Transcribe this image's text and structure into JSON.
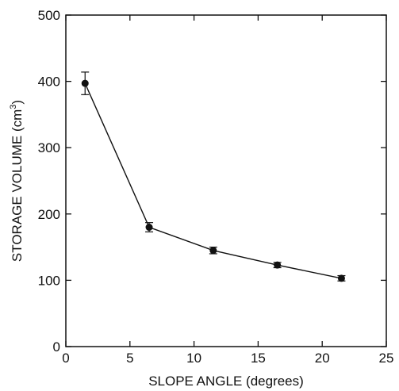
{
  "chart_data": {
    "type": "scatter",
    "xlabel": "SLOPE ANGLE (degrees)",
    "ylabel_main": "STORAGE VOLUME (cm",
    "ylabel_sup": "3",
    "ylabel_close": ")",
    "xlim": [
      0,
      25
    ],
    "ylim": [
      0,
      500
    ],
    "xticks": [
      0,
      5,
      10,
      15,
      20,
      25
    ],
    "yticks": [
      0,
      100,
      200,
      300,
      400,
      500
    ],
    "grid": false,
    "series": [
      {
        "x": [
          1.5,
          6.5,
          11.5,
          16.5,
          21.5
        ],
        "y": [
          397,
          180,
          145,
          123,
          103
        ],
        "error": [
          17,
          7,
          5,
          4,
          4
        ],
        "marker": "filled-circle",
        "line": "solid",
        "color": "#111111"
      }
    ]
  }
}
